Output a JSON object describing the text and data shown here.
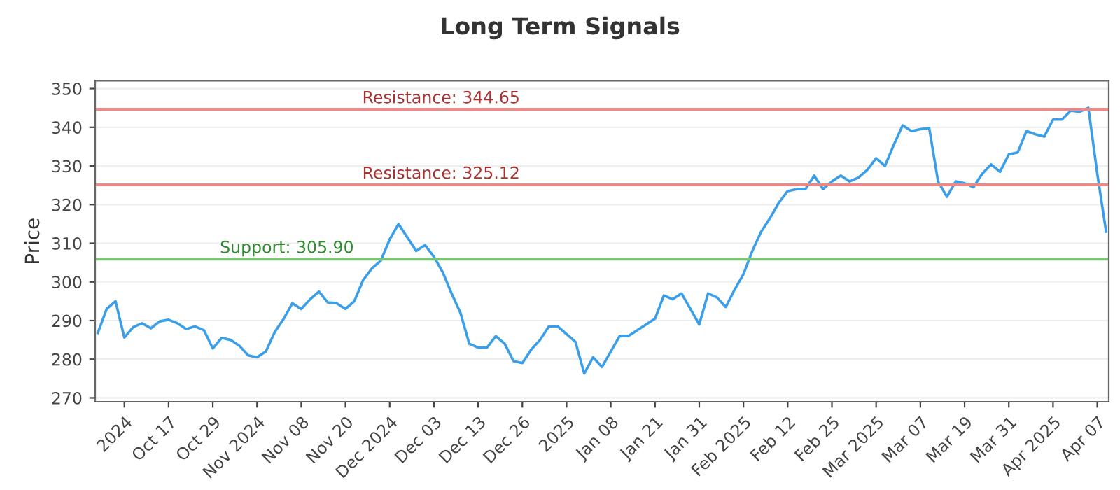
{
  "chart_data": {
    "type": "line",
    "title": "Long Term Signals",
    "ylabel": "Price",
    "categories": [
      null,
      null,
      null,
      "2024",
      null,
      null,
      null,
      null,
      "Oct 17",
      null,
      null,
      null,
      null,
      "Oct 29",
      null,
      null,
      null,
      null,
      "Nov 2024",
      null,
      null,
      null,
      null,
      "Nov 08",
      null,
      null,
      null,
      null,
      "Nov 20",
      null,
      null,
      null,
      null,
      "Dec 2024",
      null,
      null,
      null,
      null,
      "Dec 03",
      null,
      null,
      null,
      null,
      "Dec 13",
      null,
      null,
      null,
      null,
      "Dec 26",
      null,
      null,
      null,
      null,
      "2025",
      null,
      null,
      null,
      null,
      "Jan 08",
      null,
      null,
      null,
      null,
      "Jan 21",
      null,
      null,
      null,
      null,
      "Jan 31",
      null,
      null,
      null,
      null,
      "Feb 2025",
      null,
      null,
      null,
      null,
      "Feb 12",
      null,
      null,
      null,
      null,
      "Feb 25",
      null,
      null,
      null,
      null,
      "Mar 2025",
      null,
      null,
      null,
      null,
      "Mar 07",
      null,
      null,
      null,
      null,
      "Mar 19",
      null,
      null,
      null,
      null,
      "Mar 31",
      null,
      null,
      null,
      null,
      "Apr 2025",
      null,
      null,
      null,
      null,
      "Apr 07",
      null
    ],
    "series": [
      {
        "color": "#3a9ee8",
        "values": [
          286.8,
          293,
          295,
          285.6,
          288.3,
          289.3,
          288,
          289.8,
          290.2,
          289.3,
          287.8,
          288.5,
          287.5,
          282.8,
          285.5,
          285,
          283.5,
          281,
          280.5,
          282,
          287,
          290.4,
          294.5,
          293,
          295.5,
          297.5,
          294.7,
          294.5,
          293,
          295,
          300.5,
          303.5,
          305.5,
          311,
          315,
          311.5,
          308,
          309.5,
          306.5,
          302.5,
          297,
          292,
          284,
          283,
          283,
          286,
          284,
          279.5,
          279,
          282.5,
          285,
          288.5,
          288.5,
          286.5,
          284.5,
          276.3,
          280.5,
          278,
          282,
          286,
          286,
          287.5,
          289,
          290.5,
          296.5,
          295.5,
          297,
          293,
          289,
          297,
          296,
          293.5,
          298,
          302,
          308,
          313,
          316.5,
          320.5,
          323.5,
          324,
          324,
          327.5,
          324,
          326,
          327.5,
          326,
          327,
          329,
          332,
          330,
          335.5,
          340.5,
          339,
          339.5,
          339.8,
          326,
          322,
          326,
          325.5,
          324.5,
          328,
          330.4,
          328.5,
          333,
          333.5,
          339,
          338.2,
          337.6,
          342,
          342,
          344.3,
          344,
          345,
          328,
          313
        ]
      }
    ],
    "ylim": [
      269,
      352
    ],
    "yticks": [
      270,
      280,
      290,
      300,
      310,
      320,
      330,
      340,
      350
    ],
    "grid": "y",
    "ref_lines": [
      {
        "axis": "y",
        "value": 344.65,
        "label": "Resistance: 344.65",
        "color": "#e88a8a"
      },
      {
        "axis": "y",
        "value": 325.12,
        "label": "Resistance: 325.12",
        "color": "#e88a8a"
      },
      {
        "axis": "y",
        "value": 305.9,
        "label": "Support: 305.90",
        "color": "#7cc576"
      }
    ]
  }
}
